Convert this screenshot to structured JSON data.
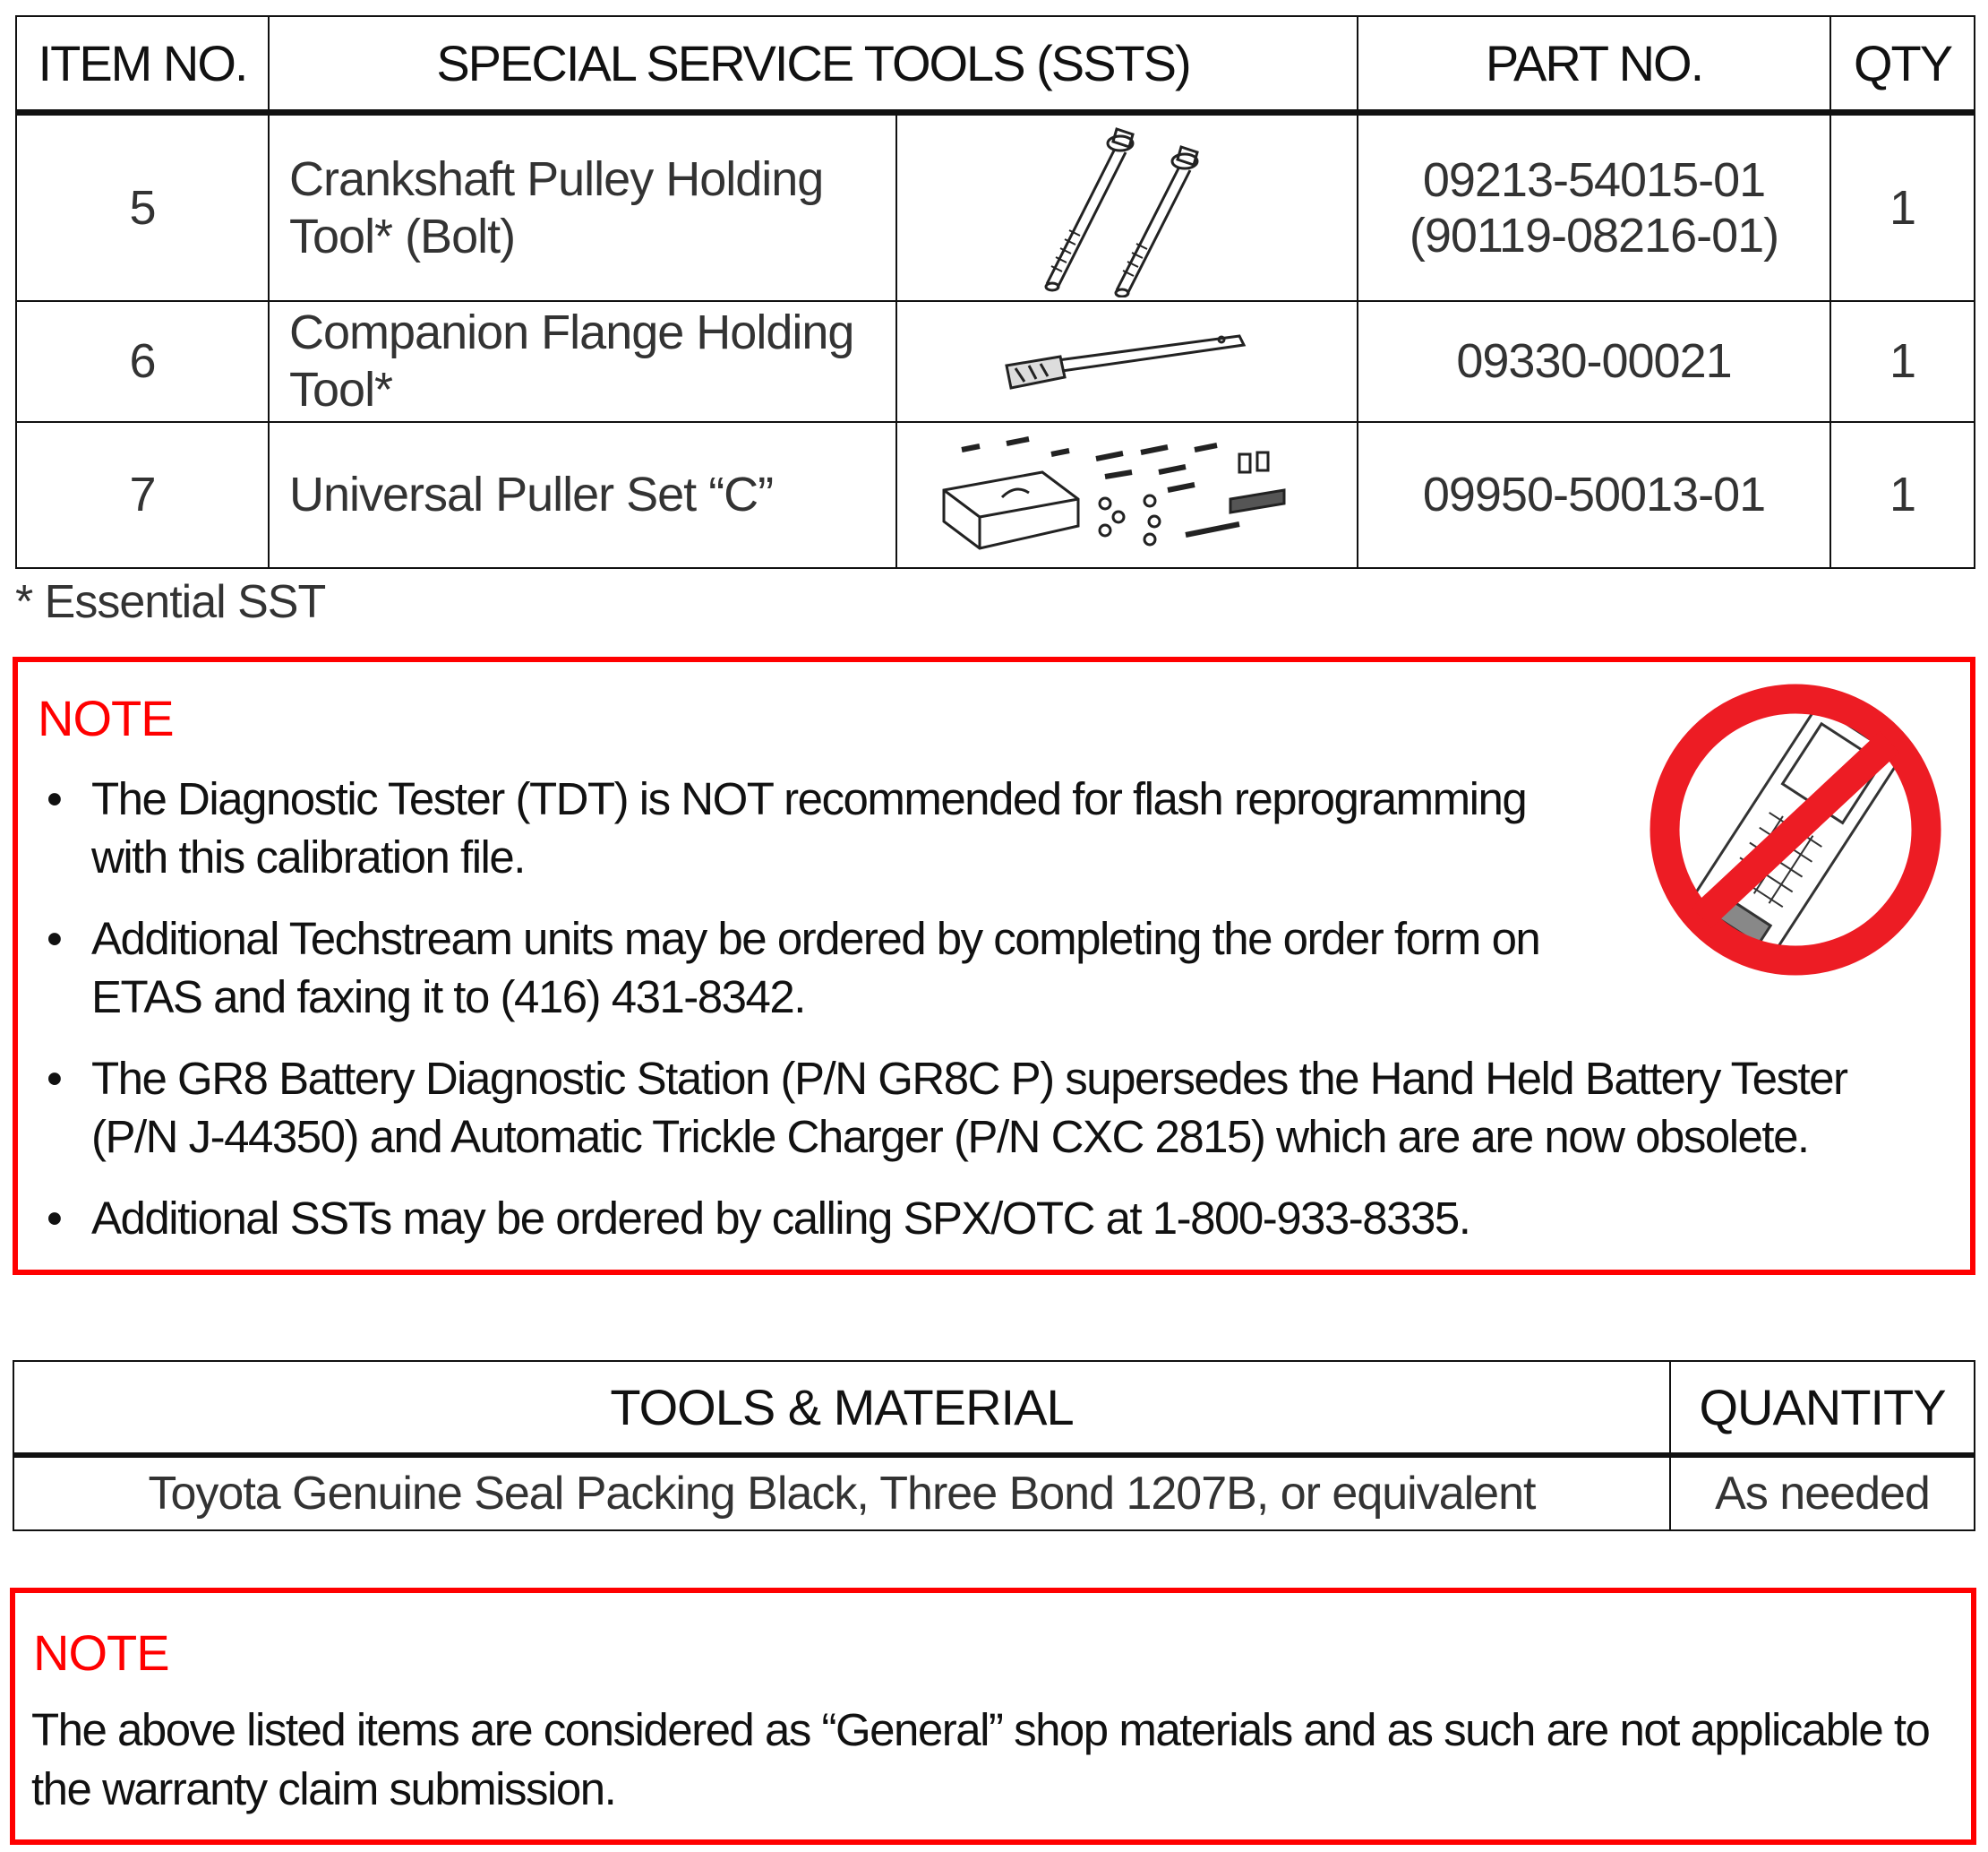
{
  "sst_table": {
    "headers": {
      "item_no": "ITEM NO.",
      "tools": "SPECIAL SERVICE TOOLS (SSTS)",
      "part_no": "PART NO.",
      "qty": "QTY"
    },
    "rows": [
      {
        "item": "5",
        "line1": "Crankshaft Pulley Holding",
        "line2": "Tool* (Bolt)",
        "part1": "09213-54015-01",
        "part2": "(90119-08216-01)",
        "qty": "1",
        "image": "bolts-illustration"
      },
      {
        "item": "6",
        "line1": "Companion Flange Holding",
        "line2": "Tool*",
        "part1": "09330-00021",
        "part2": "",
        "qty": "1",
        "image": "flange-holding-tool-illustration"
      },
      {
        "item": "7",
        "line1": "Universal Puller Set “C”",
        "line2": "",
        "part1": "09950-50013-01",
        "part2": "",
        "qty": "1",
        "image": "puller-set-illustration"
      }
    ],
    "footnote": "* Essential SST"
  },
  "note1": {
    "title": "NOTE",
    "bullets": [
      {
        "l1": "The Diagnostic Tester (TDT) is NOT recommended for flash reprogramming",
        "l2": "with this calibration file."
      },
      {
        "l1": "Additional Techstream units may be ordered by completing the order form on",
        "l2": "ETAS and faxing it to (416) 431-8342."
      },
      {
        "l1": "The GR8 Battery Diagnostic Station (P/N GR8C P) supersedes the Hand Held Battery Tester",
        "l2": "(P/N J-44350) and Automatic Trickle Charger (P/N CXC 2815) which are are now obsolete."
      },
      {
        "l1": "Additional SSTs may be ordered by calling SPX/OTC at 1-800-933-8335.",
        "l2": ""
      }
    ],
    "bullet_char": "•",
    "icon": "no-diagnostic-tester-icon"
  },
  "tools_material": {
    "headers": {
      "item": "TOOLS & MATERIAL",
      "quantity": "QUANTITY"
    },
    "rows": [
      {
        "item": "Toyota Genuine Seal Packing Black, Three Bond 1207B, or equivalent",
        "quantity": "As needed"
      }
    ]
  },
  "note2": {
    "title": "NOTE",
    "l1": "The above listed items are considered as “General” shop materials and as such are not applicable to",
    "l2": "the warranty claim submission."
  },
  "colors": {
    "note_border": "#ff0000",
    "prohibit_red": "#ed1c24"
  }
}
